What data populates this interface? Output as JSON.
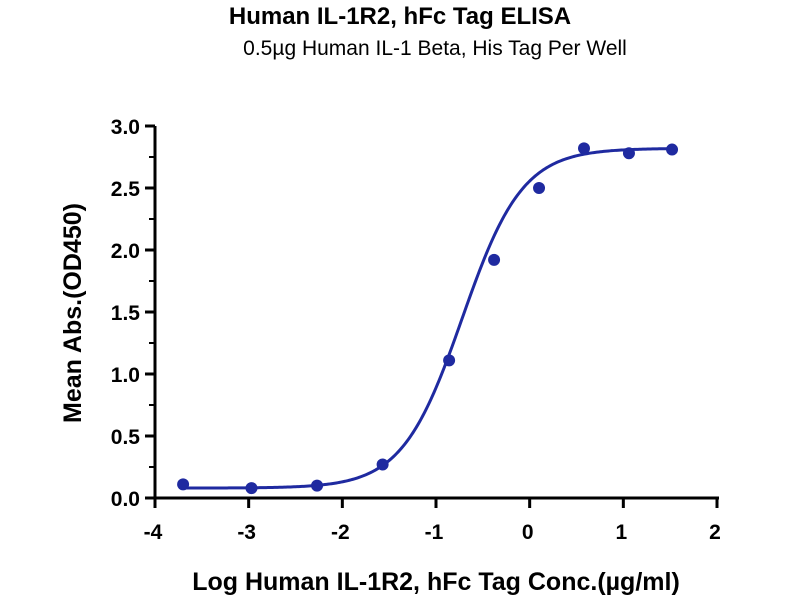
{
  "chart_data": {
    "type": "scatter",
    "title": "Human IL-1R2, hFc Tag ELISA",
    "subtitle": "0.5µg Human IL-1 Beta, His Tag Per Well",
    "xlabel": "Log Human IL-1R2, hFc Tag Conc.(µg/ml)",
    "ylabel": "Mean Abs.(OD450)",
    "xlim": [
      -4,
      2
    ],
    "ylim": [
      0,
      3.0
    ],
    "xticks": [
      "-4",
      "-3",
      "-2",
      "-1",
      "0",
      "1",
      "2"
    ],
    "yticks": [
      "0.0",
      "0.5",
      "1.0",
      "1.5",
      "2.0",
      "2.5",
      "3.0"
    ],
    "grid": false,
    "color": "#1f2aa0",
    "points": {
      "x": [
        -3.7,
        -2.97,
        -2.27,
        -1.57,
        -0.86,
        -0.38,
        0.1,
        0.58,
        1.06,
        1.52
      ],
      "y": [
        0.11,
        0.08,
        0.1,
        0.27,
        1.11,
        1.92,
        2.5,
        2.82,
        2.78,
        2.81
      ]
    },
    "fit_curve": {
      "type": "4PL sigmoid",
      "bottom": 0.08,
      "top": 2.82,
      "log_ec50": -0.72,
      "hill_slope": 1.35
    }
  }
}
